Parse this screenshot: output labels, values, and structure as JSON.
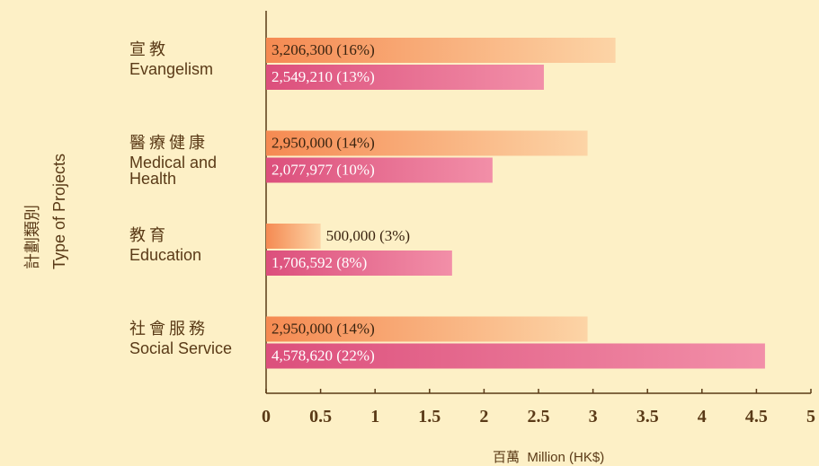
{
  "chart_data": {
    "type": "bar",
    "orientation": "horizontal",
    "y_axis_title": [
      "計劃類別",
      "Type of Projects"
    ],
    "x_axis_title": [
      "百萬",
      "Million (HK$)"
    ],
    "categories": [
      [
        "宣教",
        "Evangelism"
      ],
      [
        "醫療健康",
        "Medical and Health"
      ],
      [
        "教育",
        "Education"
      ],
      [
        "社會服務",
        "Social Service"
      ]
    ],
    "series": [
      {
        "color": [
          "#f58a52",
          "#fcd4a6"
        ],
        "values": [
          3.2063,
          2.95,
          0.5,
          2.95
        ],
        "value_labels": [
          "3,206,300 (16%)",
          "2,950,000 (14%)",
          "500,000 (3%)",
          "2,950,000 (14%)"
        ]
      },
      {
        "color": [
          "#dc4f7c",
          "#f28fa8"
        ],
        "values": [
          2.54921,
          2.077977,
          1.706592,
          4.57862
        ],
        "value_labels": [
          "2,549,210 (13%)",
          "2,077,977 (10%)",
          "1,706,592 (8%)",
          "4,578,620 (22%)"
        ]
      }
    ],
    "xlim": [
      0,
      5
    ],
    "xticks": [
      0,
      0.5,
      1,
      1.5,
      2,
      2.5,
      3,
      3.5,
      4,
      4.5,
      5
    ]
  }
}
